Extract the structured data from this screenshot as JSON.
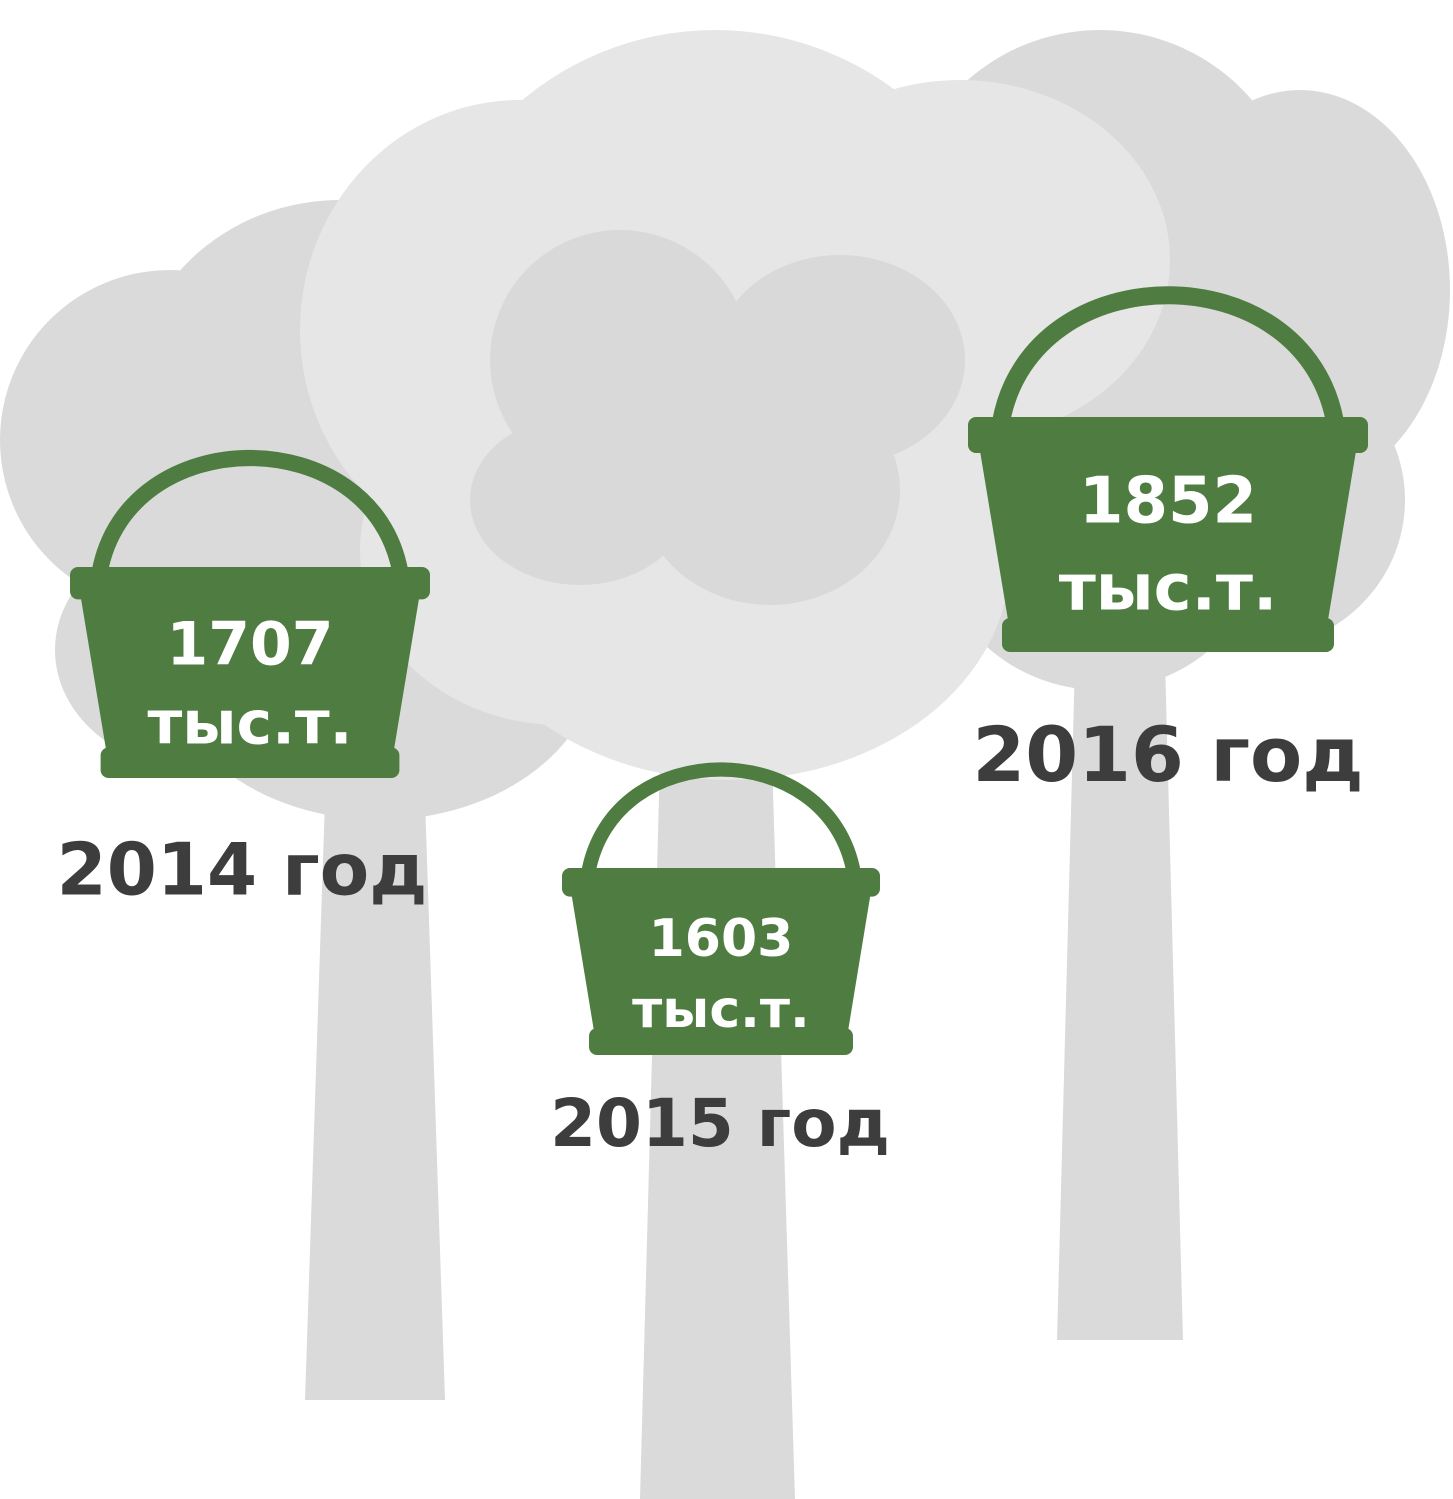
{
  "items": [
    {
      "value": "1707",
      "unit": "тыс.т.",
      "year": "2014 год"
    },
    {
      "value": "1603",
      "unit": "тыс.т.",
      "year": "2015 год"
    },
    {
      "value": "1852",
      "unit": "тыс.т.",
      "year": "2016 год"
    }
  ]
}
